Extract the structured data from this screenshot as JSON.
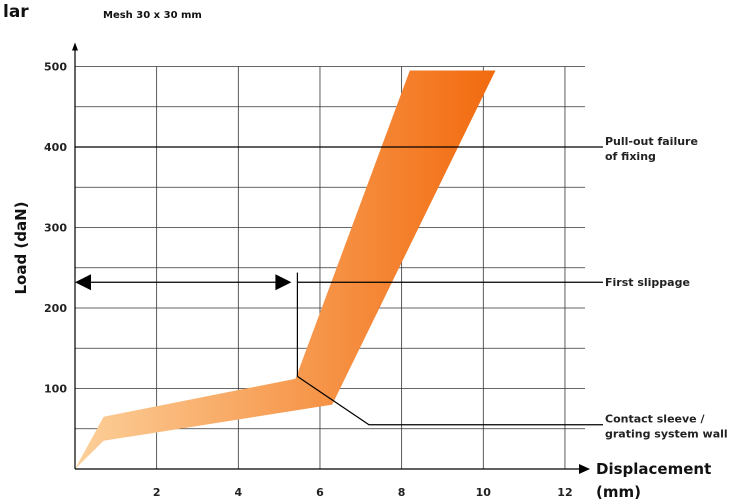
{
  "chart_data": {
    "type": "area",
    "title_fragment": "lar",
    "subtitle": "Mesh 30 x 30 mm",
    "xlabel": "Displacement",
    "xlabel_unit": "(mm)",
    "ylabel": "Load (daN)",
    "xlim": [
      0,
      12.5
    ],
    "ylim": [
      0,
      500
    ],
    "x_ticks": [
      "2",
      "4",
      "6",
      "8",
      "10",
      "12"
    ],
    "y_ticks": [
      "100",
      "200",
      "300",
      "400",
      "500"
    ],
    "grid": true,
    "band": {
      "name": "",
      "upper": [
        [
          0,
          0
        ],
        [
          0.7,
          65
        ],
        [
          5.4,
          112
        ],
        [
          8.2,
          495
        ],
        [
          10.3,
          495
        ]
      ],
      "lower": [
        [
          0,
          0
        ],
        [
          0.7,
          35
        ],
        [
          6.3,
          80
        ],
        [
          10.3,
          495
        ]
      ]
    },
    "annotations": [
      {
        "id": "pullout",
        "lines": [
          "Pull-out failure",
          "of fixing"
        ],
        "y": 400
      },
      {
        "id": "slippage",
        "lines": [
          "First slippage"
        ],
        "y": 232,
        "arrow_from_x": 0,
        "arrow_to_x": 5.3
      },
      {
        "id": "contact",
        "lines": [
          "Contact sleeve /",
          "grating system wall"
        ],
        "pointer_x": 7.2,
        "pointer_y": 55,
        "leader_start": [
          5.3,
          115
        ]
      }
    ],
    "colors": {
      "band_light": "#fcd09a",
      "band_dark": "#f26a0e",
      "grid": "#333333",
      "axis": "#000000"
    }
  }
}
